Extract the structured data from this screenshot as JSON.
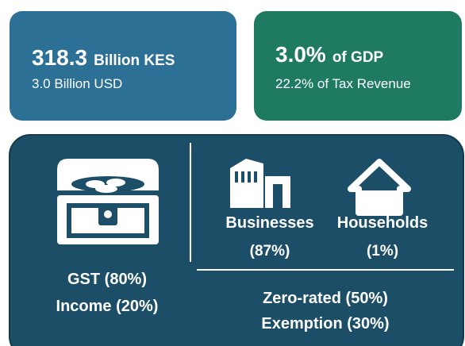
{
  "cards": [
    {
      "value": "318.3",
      "unit": "Billion KES",
      "sub": "3.0 Billion USD"
    },
    {
      "value": "3.0%",
      "unit": "of GDP",
      "sub": "22.2% of Tax Revenue"
    }
  ],
  "taxes": [
    "GST (80%)",
    "Income (20%)"
  ],
  "beneficiaries": [
    {
      "name": "Businesses",
      "share": "(87%)"
    },
    {
      "name": "Households",
      "share": "(1%)"
    }
  ],
  "types": [
    "Zero-rated (50%)",
    "Exemption (30%)"
  ]
}
